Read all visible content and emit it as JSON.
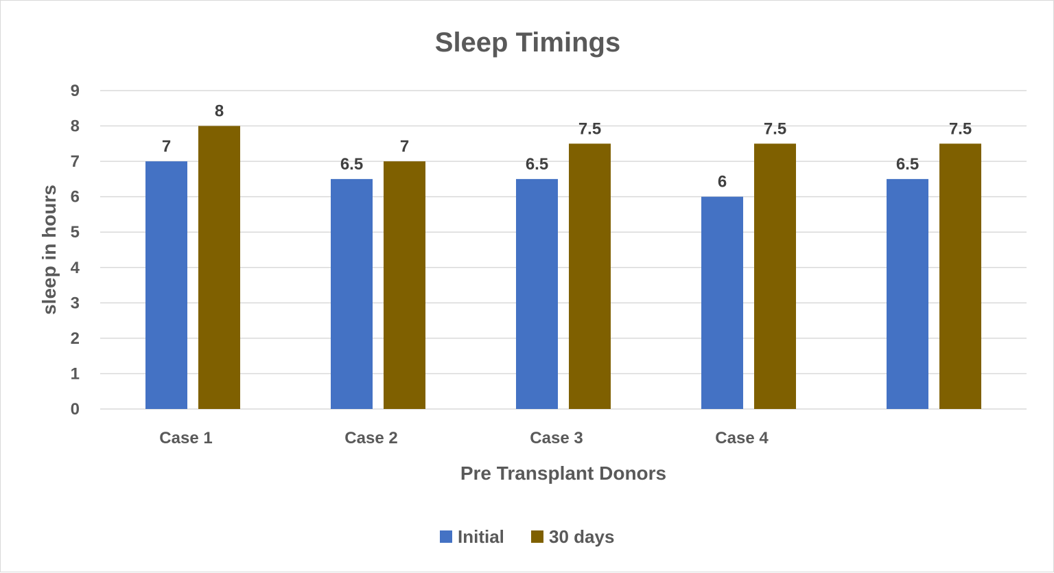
{
  "chart_data": {
    "type": "bar",
    "title": "Sleep Timings",
    "xlabel": "Pre Transplant Donors",
    "ylabel": "sleep in hours",
    "categories": [
      "Case 1",
      "Case 2",
      "Case 3",
      "Case 4",
      ""
    ],
    "series": [
      {
        "name": "Initial",
        "color": "#4472c4",
        "values": [
          7,
          6.5,
          6.5,
          6,
          6.5
        ],
        "labels": [
          "7",
          "6.5",
          "6.5",
          "6",
          "6.5"
        ]
      },
      {
        "name": "30 days",
        "color": "#7f6000",
        "values": [
          8,
          7,
          7.5,
          7.5,
          7.5
        ],
        "labels": [
          "8",
          "7",
          "7.5",
          "7.5",
          "7.5"
        ]
      }
    ],
    "ylim": [
      0,
      9
    ],
    "yticks": [
      "0",
      "1",
      "2",
      "3",
      "4",
      "5",
      "6",
      "7",
      "8",
      "9"
    ],
    "grid": true,
    "legend_position": "bottom"
  }
}
